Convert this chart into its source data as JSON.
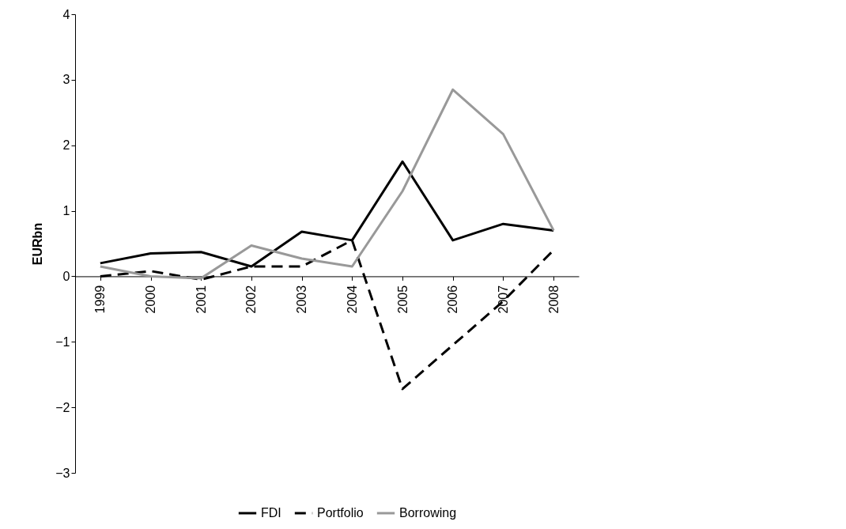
{
  "chart_data": {
    "type": "line",
    "ylabel": "EURbn",
    "categories": [
      "1999",
      "2000",
      "2001",
      "2002",
      "2003",
      "2004",
      "2005",
      "2006",
      "2007",
      "2008"
    ],
    "series": [
      {
        "name": "FDI",
        "color": "#000000",
        "line_style": "solid",
        "values": [
          0.2,
          0.35,
          0.37,
          0.15,
          0.68,
          0.55,
          1.75,
          0.55,
          0.8,
          0.7
        ]
      },
      {
        "name": "Portfolio",
        "color": "#000000",
        "line_style": "dashed",
        "values": [
          0.0,
          0.08,
          -0.05,
          0.15,
          0.15,
          0.55,
          -1.72,
          -1.05,
          -0.38,
          0.4
        ]
      },
      {
        "name": "Borrowing",
        "color": "#999999",
        "line_style": "solid",
        "values": [
          0.15,
          0.0,
          -0.03,
          0.47,
          0.27,
          0.15,
          1.3,
          2.85,
          2.17,
          0.7
        ]
      }
    ],
    "ylim": [
      -3,
      4
    ],
    "yticks": [
      -3,
      -2,
      -1,
      0,
      1,
      2,
      3,
      4
    ],
    "grid": false,
    "legend": "bottom",
    "marker": "none"
  }
}
